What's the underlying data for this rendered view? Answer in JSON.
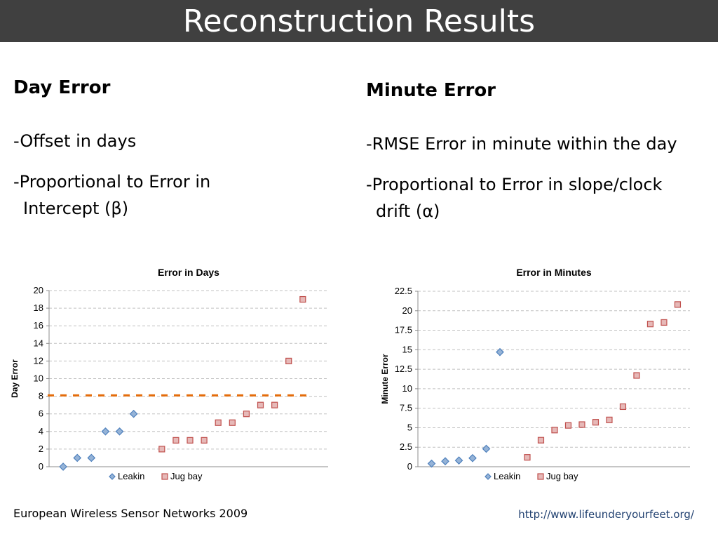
{
  "slide": {
    "title": "Reconstruction Results",
    "left": {
      "heading": "Day Error",
      "bullet1": "-Offset in days",
      "bullet2_line1": "-Proportional to Error in",
      "bullet2_line2": "Intercept  (β)"
    },
    "right": {
      "heading": "Minute Error",
      "bullet1": "-RMSE Error in minute within the day",
      "bullet2_line1": "-Proportional to Error in slope/clock",
      "bullet2_line2": "drift  (α)"
    },
    "footer_left": "European Wireless Sensor Networks 2009",
    "footer_right": "http://www.lifeunderyourfeet.org/"
  },
  "colors": {
    "title_bar": "#404040",
    "leakin": "#4f81bd",
    "jugbay": "#c0504d",
    "threshold": "#e46c0a",
    "grid": "#c0c0c0"
  },
  "chart_data": [
    {
      "type": "scatter",
      "title": "Error in Days",
      "xlabel": "",
      "ylabel": "Day Error",
      "ylim": [
        0,
        20
      ],
      "yticks": [
        0,
        2,
        4,
        6,
        8,
        10,
        12,
        14,
        16,
        18,
        20
      ],
      "grid": true,
      "legend": "bottom",
      "reference_line": {
        "y": 8.1,
        "style": "dashed"
      },
      "series": [
        {
          "name": "Leakin",
          "marker": "diamond",
          "x": [
            1,
            2,
            3,
            4,
            5,
            6
          ],
          "y": [
            0,
            1,
            1,
            4,
            4,
            6
          ]
        },
        {
          "name": "Jug bay",
          "marker": "square",
          "x": [
            8,
            9,
            10,
            11,
            12,
            13,
            14,
            15,
            16,
            17,
            18
          ],
          "y": [
            2,
            3,
            3,
            3,
            5,
            5,
            6,
            7,
            7,
            12,
            19
          ]
        }
      ],
      "xlim": [
        0,
        19.8
      ]
    },
    {
      "type": "scatter",
      "title": "Error in Minutes",
      "xlabel": "",
      "ylabel": "Minute Error",
      "ylim": [
        0,
        22.5
      ],
      "yticks": [
        0,
        2.5,
        5,
        7.5,
        10,
        12.5,
        15,
        17.5,
        20,
        22.5
      ],
      "grid": true,
      "legend": "bottom",
      "series": [
        {
          "name": "Leakin",
          "marker": "diamond",
          "x": [
            1,
            2,
            3,
            4,
            5,
            6
          ],
          "y": [
            0.4,
            0.7,
            0.8,
            1.1,
            2.3,
            14.7
          ]
        },
        {
          "name": "Jug bay",
          "marker": "square",
          "x": [
            8,
            9,
            10,
            11,
            12,
            13,
            14,
            15,
            16,
            17,
            18,
            19
          ],
          "y": [
            1.2,
            3.4,
            4.7,
            5.3,
            5.4,
            5.7,
            6.0,
            7.7,
            11.7,
            18.3,
            18.5,
            20.8
          ]
        }
      ],
      "xlim": [
        0,
        19.9
      ]
    }
  ]
}
